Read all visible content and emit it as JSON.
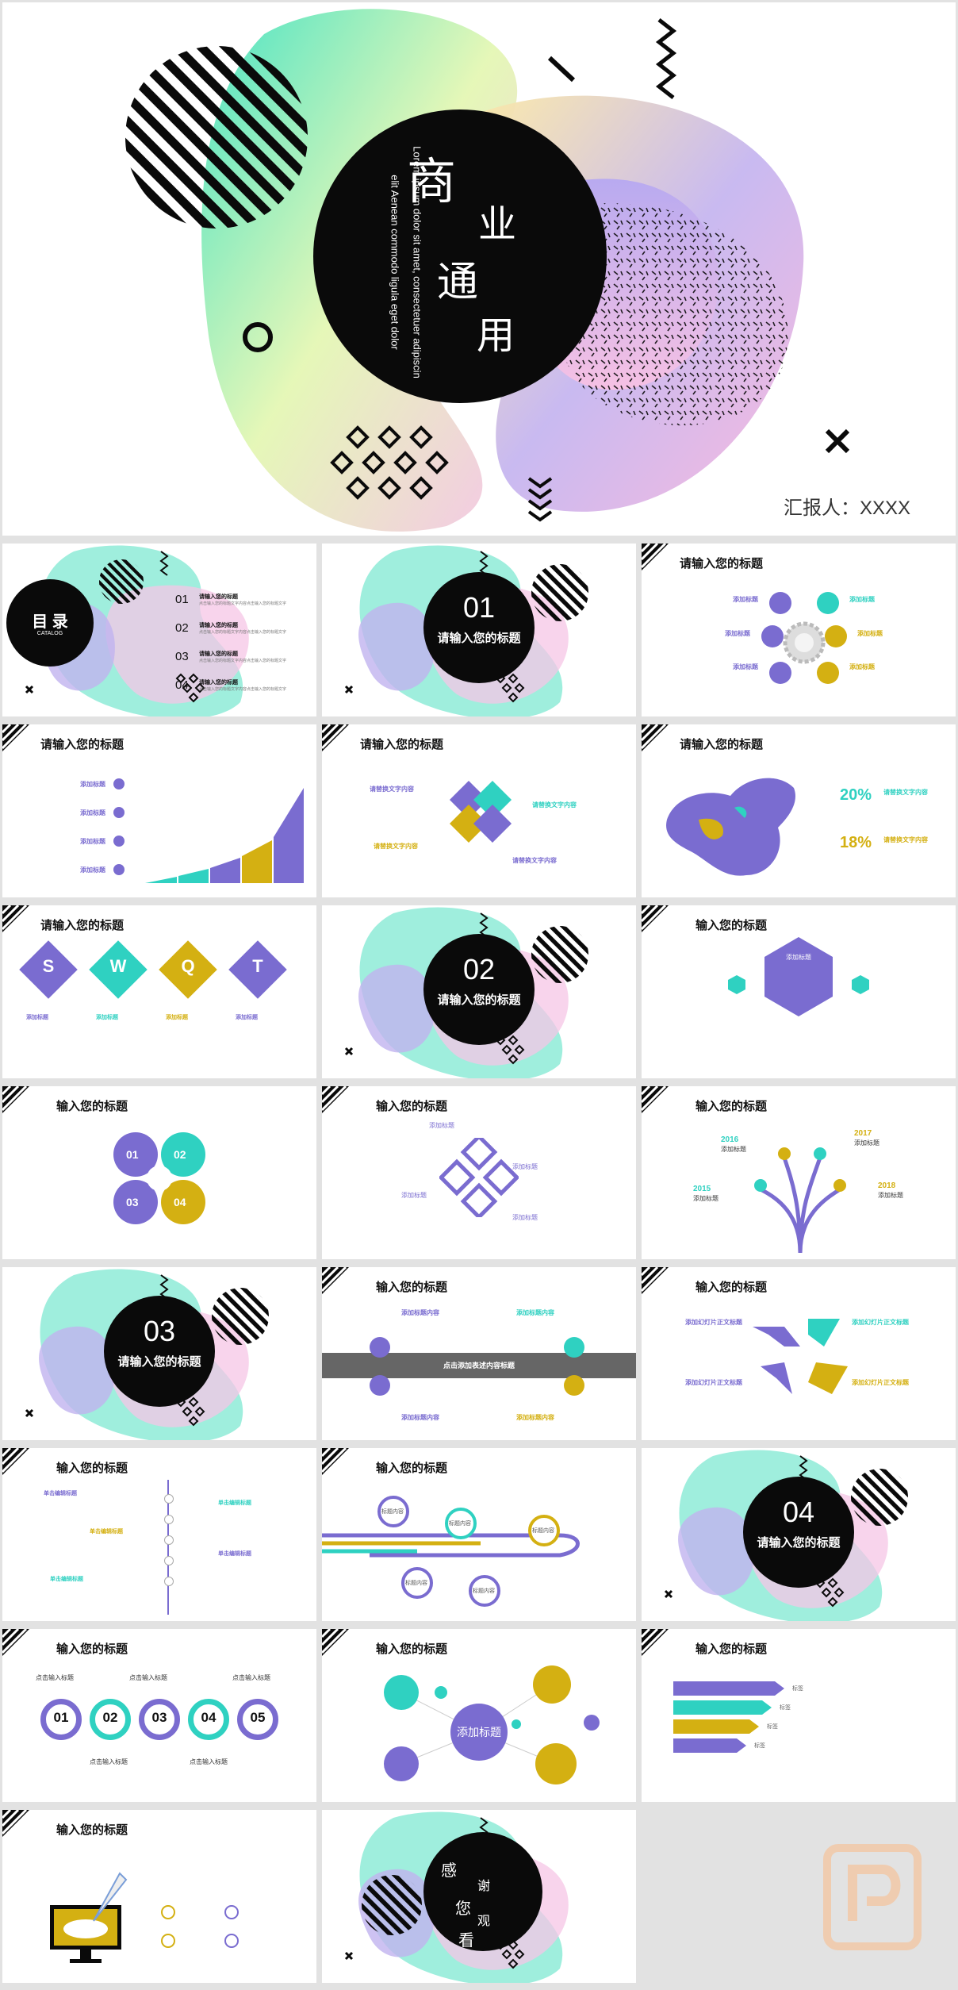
{
  "colors": {
    "purple": "#7a6cd0",
    "teal": "#2fd1c1",
    "yellow": "#d4b012",
    "black": "#0a0a0a",
    "grey": "#666666"
  },
  "cover": {
    "title_chars": [
      "商",
      "业",
      "通",
      "用"
    ],
    "subtitle_line1": "Lorem ipsum dolor sit amet, consectetuer adipiscin",
    "subtitle_line2": "elit Aenean commodo ligula eget dolor",
    "reporter": "汇报人：XXXX"
  },
  "toc": {
    "title": "目 录",
    "subtitle": "CATALOG",
    "items": [
      {
        "num": "01",
        "label": "请输入您的标题",
        "desc": "点击输入您的标题文字内容点击输入您的标题文字"
      },
      {
        "num": "02",
        "label": "请输入您的标题",
        "desc": "点击输入您的标题文字内容点击输入您的标题文字"
      },
      {
        "num": "03",
        "label": "请输入您的标题",
        "desc": "点击输入您的标题文字内容点击输入您的标题文字"
      },
      {
        "num": "04",
        "label": "请输入您的标题",
        "desc": "点击输入您的标题文字内容点击输入您的标题文字"
      }
    ]
  },
  "section_title": "请输入您的标题",
  "sections": [
    "01",
    "02",
    "03",
    "04"
  ],
  "slide_titles": {
    "long": "请输入您的标题",
    "short": "输入您的标题"
  },
  "tags": {
    "add": "添加标题",
    "tag": "标签",
    "content": "标题内容",
    "click": "点击输入标题",
    "text": "请替换文字内容",
    "add_content": "添加标题内容",
    "custom": "添加幻灯片正文标题",
    "click_title": "单击编辑标题"
  },
  "swot": [
    "S",
    "W",
    "Q",
    "T"
  ],
  "map": {
    "pct1": "20%",
    "pct2": "18%"
  },
  "timeline": {
    "years": [
      "2016",
      "2017",
      "2015",
      "2018"
    ]
  },
  "gray_bar": "点击添加表述内容标题",
  "numbers": [
    "01",
    "02",
    "03",
    "04",
    "05"
  ],
  "bubble_center": "添加标题",
  "thanks_chars": [
    "感",
    "谢",
    "您",
    "观",
    "看"
  ]
}
